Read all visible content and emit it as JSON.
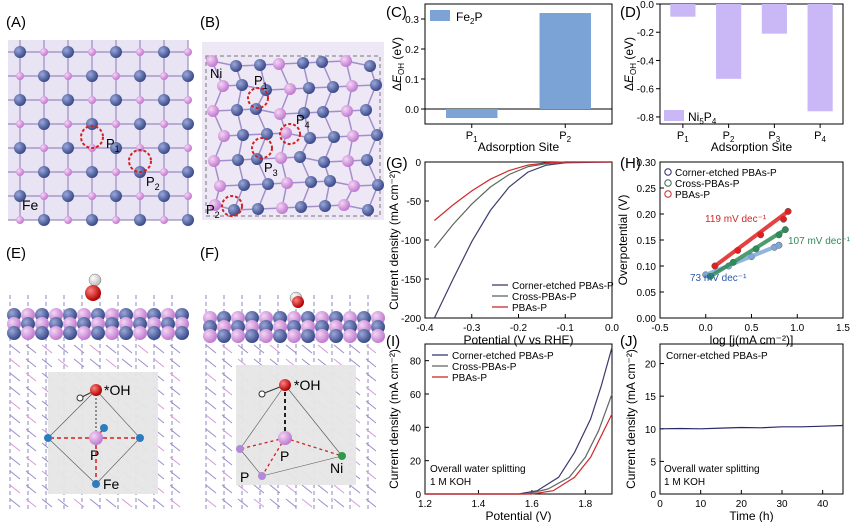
{
  "panels": {
    "A": "(A)",
    "B": "(B)",
    "C": "(C)",
    "D": "(D)",
    "E": "(E)",
    "F": "(F)",
    "G": "(G)",
    "H": "(H)",
    "I": "(I)",
    "J": "(J)"
  },
  "structure_labels": {
    "A": {
      "site1": "P",
      "site1_sub": "1",
      "site2": "P",
      "site2_sub": "2",
      "metal": "Fe"
    },
    "B": {
      "metal": "Ni",
      "site1": "P",
      "site1_sub": "1",
      "site2": "P",
      "site2_sub": "2",
      "site3": "P",
      "site3_sub": "3",
      "site4": "P",
      "site4_sub": "4"
    },
    "E": {
      "adsorbate": "*OH",
      "center": "P",
      "metal": "Fe"
    },
    "F": {
      "adsorbate": "*OH",
      "center": "P",
      "left": "P",
      "metal": "Ni"
    }
  },
  "colors": {
    "fe2p_bar": "#7ba3d6",
    "ni5p4_bar": "#c9b8f5",
    "corner": "#3d3d6e",
    "cross": "#5a6a5a",
    "pbas": "#d02a2a",
    "fit_corner": "#7fa7d8",
    "fit_cross": "#2e8b57",
    "fit_pbas": "#e02020"
  },
  "chart_data": [
    {
      "panel": "C",
      "type": "bar",
      "categories": [
        "P1",
        "P2"
      ],
      "series": [
        {
          "name": "Fe2P",
          "values": [
            -0.03,
            0.32
          ]
        }
      ],
      "ylabel": "ΔE_OH (eV)",
      "xlabel": "Adsorption Site",
      "ylim": [
        -0.05,
        0.35
      ],
      "yticks": [
        "0.0",
        "0.1",
        "0.2",
        "0.3"
      ],
      "legend": "top-left"
    },
    {
      "panel": "D",
      "type": "bar",
      "categories": [
        "P1",
        "P2",
        "P3",
        "P4"
      ],
      "series": [
        {
          "name": "Ni5P4",
          "values": [
            -0.09,
            -0.53,
            -0.21,
            -0.76
          ]
        }
      ],
      "ylabel": "ΔE_OH (eV)",
      "xlabel": "Adsorption Site",
      "ylim": [
        -0.85,
        0
      ],
      "yticks": [
        "0.0",
        "-0.2",
        "-0.4",
        "-0.6",
        "-0.8"
      ],
      "legend": "bottom-left"
    },
    {
      "panel": "G",
      "type": "line",
      "xlabel": "Potential (V vs RHE)",
      "ylabel": "Current density (mA cm⁻²)",
      "xlim": [
        -0.4,
        0
      ],
      "ylim": [
        -200,
        0
      ],
      "xticks": [
        "-0.4",
        "-0.3",
        "-0.2",
        "-0.1",
        "0.0"
      ],
      "yticks": [
        "0",
        "-50",
        "-100",
        "-150",
        "-200"
      ],
      "series": [
        {
          "name": "Corner-etched PBAs-P",
          "points": [
            [
              -0.38,
              -200
            ],
            [
              -0.34,
              -150
            ],
            [
              -0.3,
              -102
            ],
            [
              -0.26,
              -62
            ],
            [
              -0.22,
              -32
            ],
            [
              -0.18,
              -13
            ],
            [
              -0.14,
              -4
            ],
            [
              -0.1,
              -1
            ],
            [
              0,
              0
            ]
          ]
        },
        {
          "name": "Cross-PBAs-P",
          "points": [
            [
              -0.38,
              -110
            ],
            [
              -0.34,
              -80
            ],
            [
              -0.3,
              -54
            ],
            [
              -0.26,
              -32
            ],
            [
              -0.22,
              -16
            ],
            [
              -0.18,
              -6
            ],
            [
              -0.14,
              -2
            ],
            [
              -0.1,
              0
            ],
            [
              0,
              0
            ]
          ]
        },
        {
          "name": "PBAs-P",
          "points": [
            [
              -0.38,
              -75
            ],
            [
              -0.34,
              -55
            ],
            [
              -0.3,
              -37
            ],
            [
              -0.26,
              -22
            ],
            [
              -0.22,
              -11
            ],
            [
              -0.18,
              -4
            ],
            [
              -0.14,
              -1
            ],
            [
              -0.1,
              0
            ],
            [
              0,
              0
            ]
          ]
        }
      ],
      "legend": "bottom-right"
    },
    {
      "panel": "H",
      "type": "scatter",
      "xlabel": "log [j(mA cm⁻²)]",
      "ylabel": "Overpotential (V)",
      "xlim": [
        -0.5,
        1.5
      ],
      "ylim": [
        0,
        0.3
      ],
      "xticks": [
        "-0.5",
        "0.0",
        "0.5",
        "1.0",
        "1.5"
      ],
      "yticks": [
        "0.00",
        "0.05",
        "0.10",
        "0.15",
        "0.20",
        "0.25",
        "0.30"
      ],
      "series": [
        {
          "name": "Corner-etched PBAs-P",
          "points": [
            [
              0.0,
              0.083
            ],
            [
              0.25,
              0.1
            ],
            [
              0.5,
              0.118
            ],
            [
              0.75,
              0.136
            ],
            [
              0.8,
              0.14
            ]
          ],
          "slope_label": "73 mV dec⁻¹"
        },
        {
          "name": "Cross-PBAs-P",
          "points": [
            [
              0.05,
              0.08
            ],
            [
              0.3,
              0.107
            ],
            [
              0.55,
              0.133
            ],
            [
              0.8,
              0.16
            ],
            [
              0.87,
              0.17
            ]
          ],
          "slope_label": "107 mV dec⁻¹"
        },
        {
          "name": "PBAs-P",
          "points": [
            [
              0.1,
              0.1
            ],
            [
              0.35,
              0.13
            ],
            [
              0.6,
              0.16
            ],
            [
              0.85,
              0.19
            ],
            [
              0.9,
              0.205
            ]
          ],
          "slope_label": "119 mV dec⁻¹"
        }
      ],
      "legend": "top-left"
    },
    {
      "panel": "I",
      "type": "line",
      "xlabel": "Potential (V)",
      "ylabel": "Current density (mA cm⁻²)",
      "xlim": [
        1.2,
        1.9
      ],
      "ylim": [
        0,
        90
      ],
      "xticks": [
        "1.2",
        "1.4",
        "1.6",
        "1.8"
      ],
      "yticks": [
        "0",
        "20",
        "40",
        "60",
        "80"
      ],
      "annotation": [
        "Overall water splitting",
        "1 M KOH"
      ],
      "series": [
        {
          "name": "Corner-etched PBAs-P",
          "points": [
            [
              1.2,
              0
            ],
            [
              1.55,
              0
            ],
            [
              1.62,
              2
            ],
            [
              1.7,
              10
            ],
            [
              1.76,
              25
            ],
            [
              1.82,
              45
            ],
            [
              1.86,
              65
            ],
            [
              1.9,
              88
            ]
          ]
        },
        {
          "name": "Cross-PBAs-P",
          "points": [
            [
              1.2,
              0
            ],
            [
              1.58,
              0
            ],
            [
              1.66,
              3
            ],
            [
              1.74,
              10
            ],
            [
              1.8,
              22
            ],
            [
              1.85,
              38
            ],
            [
              1.9,
              60
            ]
          ]
        },
        {
          "name": "PBAs-P",
          "points": [
            [
              1.2,
              0
            ],
            [
              1.6,
              0
            ],
            [
              1.68,
              2
            ],
            [
              1.76,
              10
            ],
            [
              1.82,
              22
            ],
            [
              1.86,
              35
            ],
            [
              1.9,
              48
            ]
          ]
        }
      ],
      "legend": "top-left"
    },
    {
      "panel": "J",
      "type": "line",
      "xlabel": "Time (h)",
      "ylabel": "Current density (mA cm⁻²)",
      "xlim": [
        0,
        45
      ],
      "ylim": [
        0,
        23
      ],
      "xticks": [
        "0",
        "10",
        "20",
        "30",
        "40"
      ],
      "yticks": [
        "0",
        "5",
        "10",
        "15",
        "20"
      ],
      "title": "Corner-etched PBAs-P",
      "annotation": [
        "Overall water splitting",
        "1 M KOH"
      ],
      "series": [
        {
          "name": "Corner-etched PBAs-P",
          "points": [
            [
              0,
              10.0
            ],
            [
              5,
              10.05
            ],
            [
              10,
              10.0
            ],
            [
              15,
              10.1
            ],
            [
              20,
              10.2
            ],
            [
              25,
              10.15
            ],
            [
              30,
              10.3
            ],
            [
              35,
              10.3
            ],
            [
              40,
              10.4
            ],
            [
              45,
              10.5
            ]
          ]
        }
      ]
    }
  ]
}
